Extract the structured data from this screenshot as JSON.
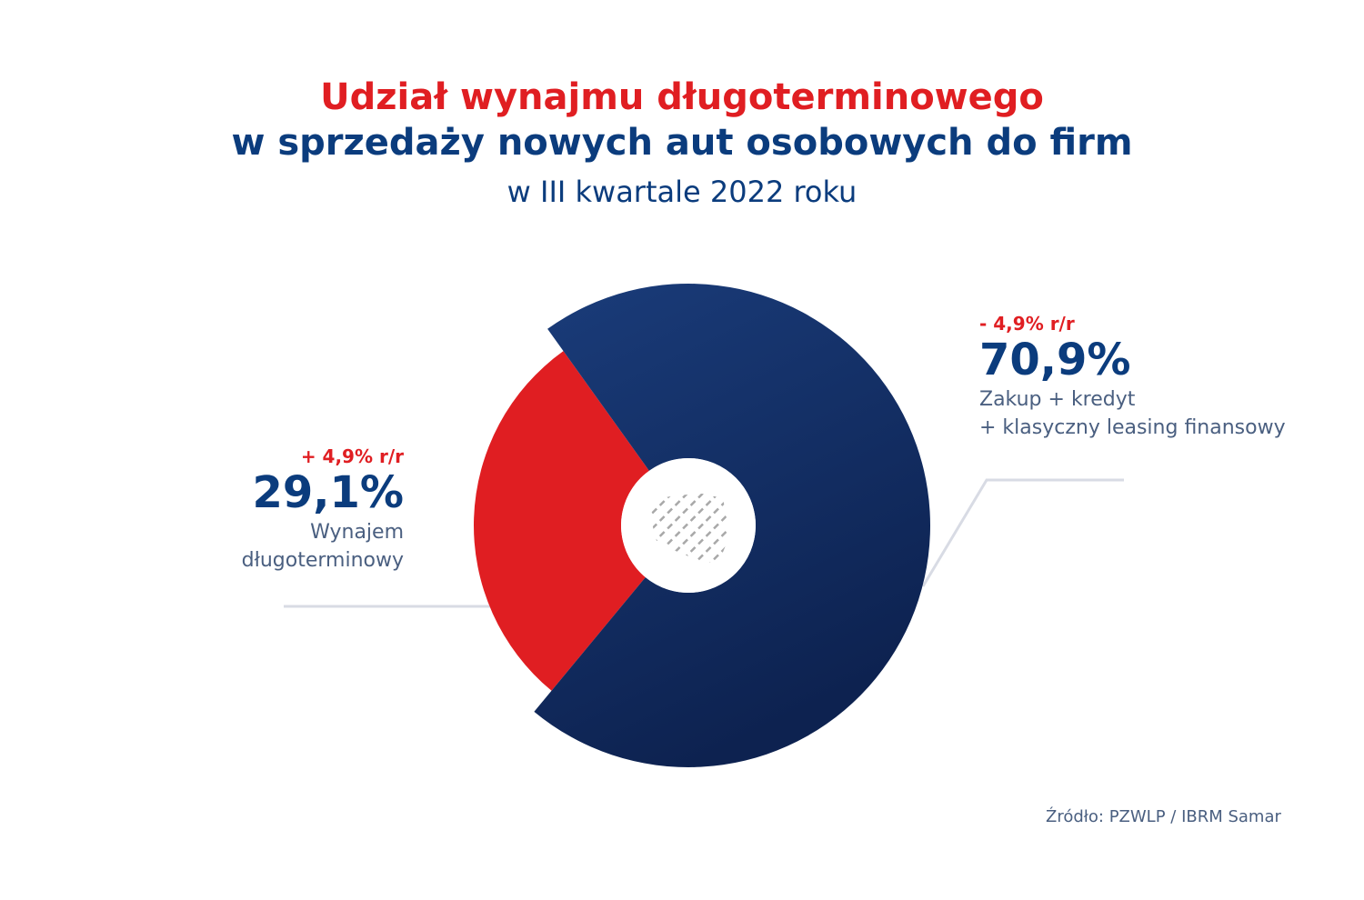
{
  "header": {
    "title_line1": "Udział wynajmu długoterminowego",
    "title_line2": "w sprzedaży nowych aut osobowych do firm",
    "subtitle": "w III kwartale 2022 roku"
  },
  "chart_data": {
    "type": "pie",
    "title": "Udział wynajmu długoterminowego w sprzedaży nowych aut osobowych do firm w III kwartale 2022 roku",
    "slices": [
      {
        "label": "Wynajem długoterminowy",
        "value": 29.1,
        "value_label": "29,1%",
        "change_label": "+ 4,9% r/r",
        "desc_lines": [
          "Wynajem",
          "długoterminowy"
        ],
        "color": "#e01e22"
      },
      {
        "label": "Zakup + kredyt + klasyczny leasing finansowy",
        "value": 70.9,
        "value_label": "70,9%",
        "change_label": "- 4,9% r/r",
        "desc_lines": [
          "Zakup + kredyt",
          "+ klasyczny leasing finansowy"
        ],
        "color": "#13306a"
      }
    ],
    "center_icon": "poland-map-icon"
  },
  "footer": {
    "source": "Źródło: PZWLP / IBRM Samar"
  }
}
